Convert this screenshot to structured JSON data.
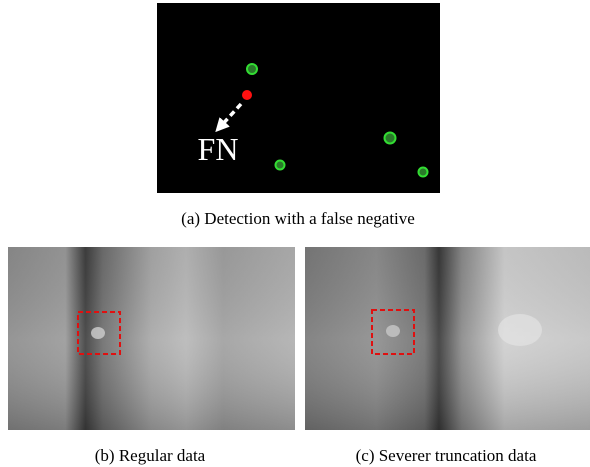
{
  "panel_a": {
    "annotation": "FN",
    "caption": "(a) Detection with a false negative"
  },
  "panel_b": {
    "caption": "(b) Regular data"
  },
  "panel_c": {
    "caption": "(c) Severer truncation data"
  }
}
